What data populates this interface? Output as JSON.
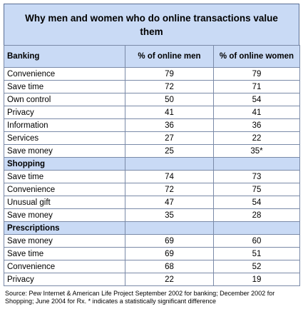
{
  "chart_data": {
    "type": "table",
    "title": "Why men and women who do online transactions value them",
    "columns": [
      "% of online men",
      "% of online women"
    ],
    "sections": [
      {
        "name": "Banking",
        "rows": [
          {
            "label": "Convenience",
            "men": "79",
            "women": "79"
          },
          {
            "label": "Save time",
            "men": "72",
            "women": "71"
          },
          {
            "label": "Own control",
            "men": "50",
            "women": "54"
          },
          {
            "label": "Privacy",
            "men": "41",
            "women": "41"
          },
          {
            "label": "Information",
            "men": "36",
            "women": "36"
          },
          {
            "label": "Services",
            "men": "27",
            "women": "22"
          },
          {
            "label": "Save money",
            "men": "25",
            "women": "35*"
          }
        ]
      },
      {
        "name": "Shopping",
        "rows": [
          {
            "label": "Save time",
            "men": "74",
            "women": "73"
          },
          {
            "label": "Convenience",
            "men": "72",
            "women": "75"
          },
          {
            "label": "Unusual gift",
            "men": "47",
            "women": "54"
          },
          {
            "label": "Save money",
            "men": "35",
            "women": "28"
          }
        ]
      },
      {
        "name": "Prescriptions",
        "rows": [
          {
            "label": "Save money",
            "men": "69",
            "women": "60"
          },
          {
            "label": "Save time",
            "men": "69",
            "women": "51"
          },
          {
            "label": "Convenience",
            "men": "68",
            "women": "52"
          },
          {
            "label": "Privacy",
            "men": "22",
            "women": "19"
          }
        ]
      }
    ],
    "source": "Source:  Pew Internet & American Life Project September 2002 for banking; December 2002 for Shopping; June 2004 for Rx.  * indicates a statistically significant difference"
  }
}
